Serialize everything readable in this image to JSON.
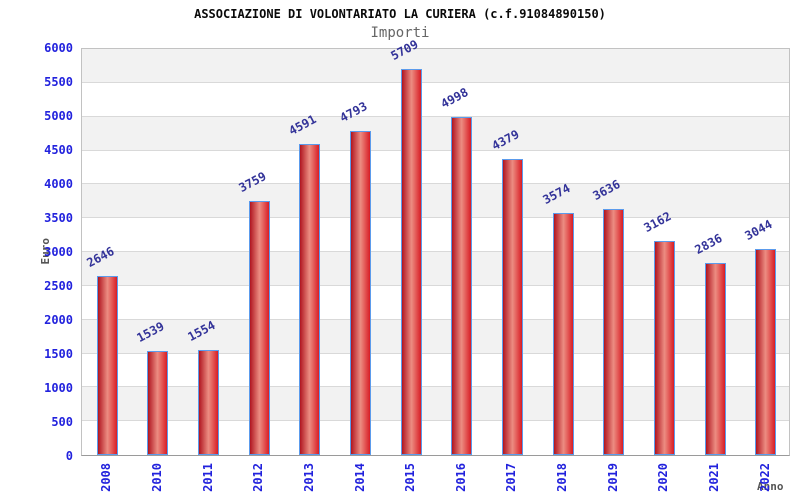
{
  "chart_data": {
    "type": "bar",
    "title": "ASSOCIAZIONE DI VOLONTARIATO LA CURIERA (c.f.91084890150)",
    "subtitle": "Importi",
    "xlabel": "Anno",
    "ylabel": "Euro",
    "categories": [
      "2008",
      "2010",
      "2011",
      "2012",
      "2013",
      "2014",
      "2015",
      "2016",
      "2017",
      "2018",
      "2019",
      "2020",
      "2021",
      "2022"
    ],
    "values": [
      2646,
      1539,
      1554,
      3759,
      4591,
      4793,
      5709,
      4998,
      4379,
      3574,
      3636,
      3162,
      2836,
      3044
    ],
    "ylim": [
      0,
      6000
    ],
    "ytick_step": 500,
    "grid": true,
    "legend": "none",
    "colors": {
      "bar_gradient_left": "#b01520",
      "bar_gradient_mid": "#ec8d82",
      "bar_gradient_right": "#d81d25",
      "bar_border": "#5b9bec",
      "tick_label": "#2222dd",
      "value_label": "#333399",
      "band_gray": "#f2f2f2",
      "band_white": "#ffffff",
      "gridline": "#d9d9d9",
      "axis_title": "#555555",
      "title": "#0a0a0a",
      "subtitle": "#666666"
    }
  }
}
